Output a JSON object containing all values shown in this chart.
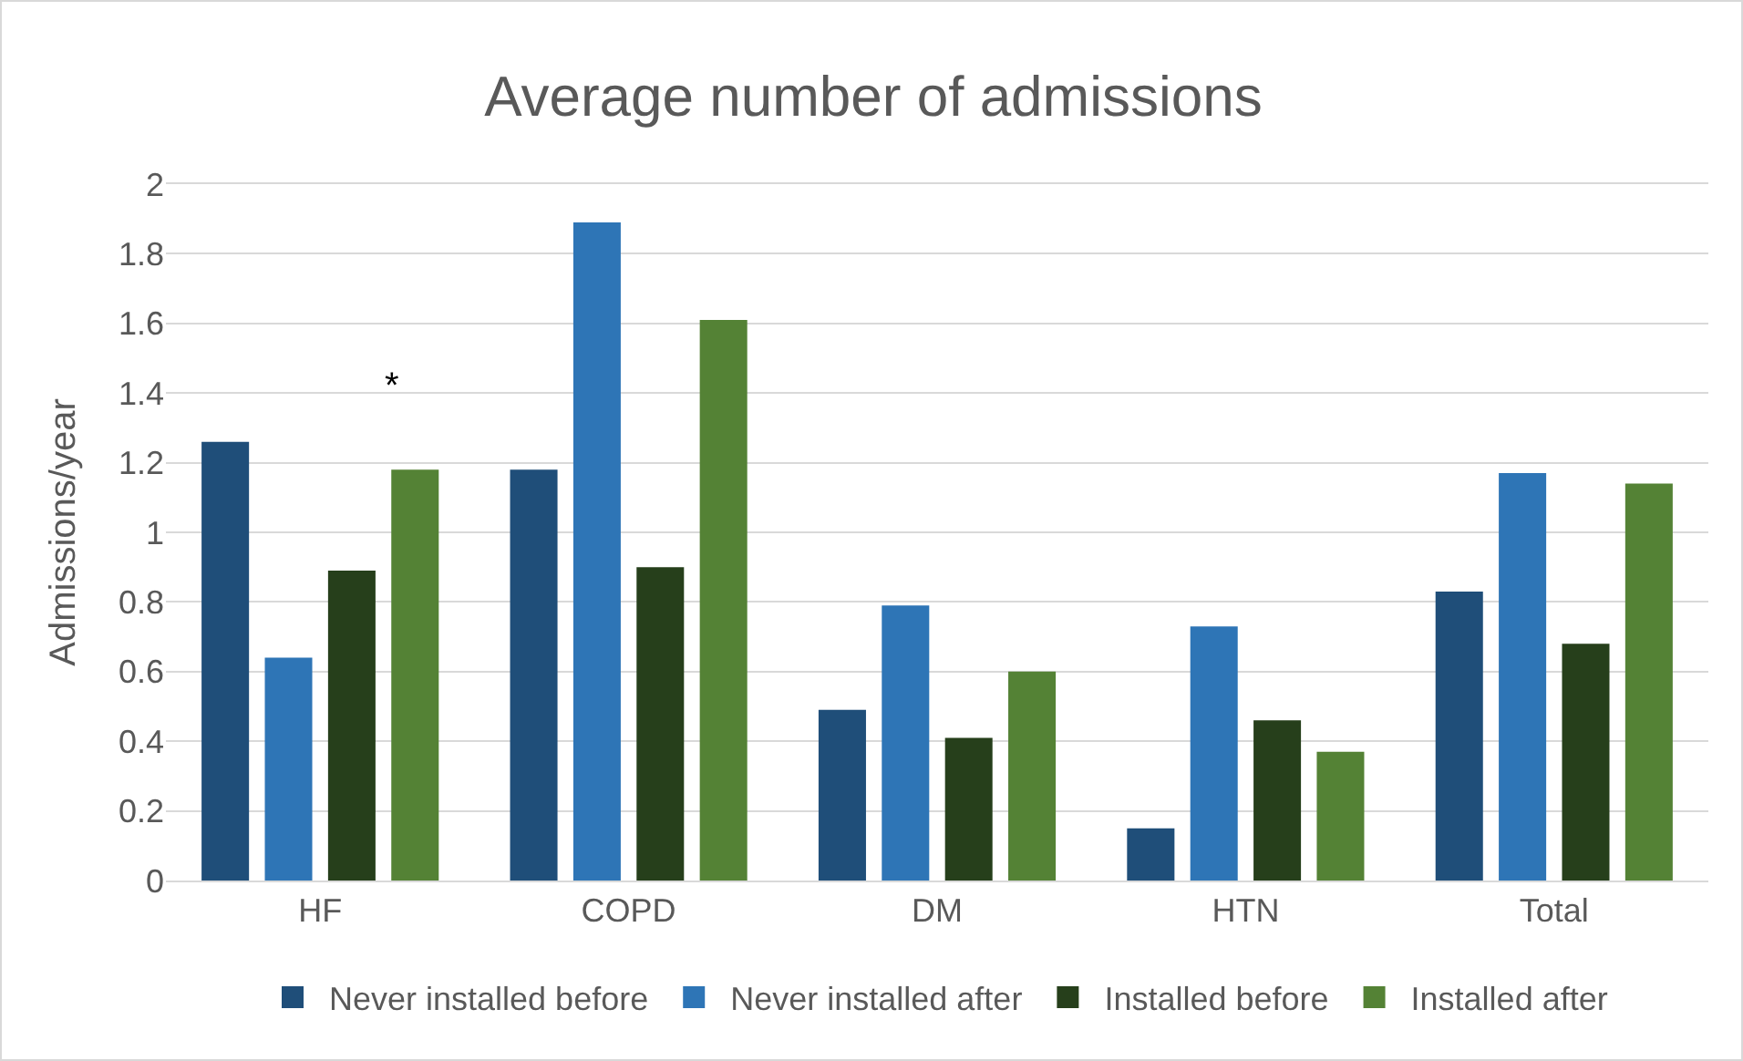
{
  "chart_data": {
    "type": "bar",
    "title": "Average number of admissions",
    "ylabel": "Admissions/year",
    "categories": [
      "HF",
      "COPD",
      "DM",
      "HTN",
      "Total"
    ],
    "series": [
      {
        "name": "Never installed before",
        "color": "#1f4e79",
        "values": [
          1.26,
          1.18,
          0.49,
          0.15,
          0.83
        ]
      },
      {
        "name": "Never installed after",
        "color": "#2e75b6",
        "values": [
          0.64,
          1.89,
          0.79,
          0.73,
          1.17
        ]
      },
      {
        "name": "Installed before",
        "color": "#263f1b",
        "values": [
          0.89,
          0.9,
          0.41,
          0.46,
          0.68
        ]
      },
      {
        "name": "Installed after",
        "color": "#548235",
        "values": [
          1.18,
          1.61,
          0.6,
          0.37,
          1.14
        ]
      }
    ],
    "ylim": [
      0,
      2
    ],
    "yticks": [
      0,
      0.2,
      0.4,
      0.6,
      0.8,
      1,
      1.2,
      1.4,
      1.6,
      1.8,
      2
    ],
    "annotations": [
      "*"
    ],
    "grid": "y",
    "legend": "bottom"
  }
}
